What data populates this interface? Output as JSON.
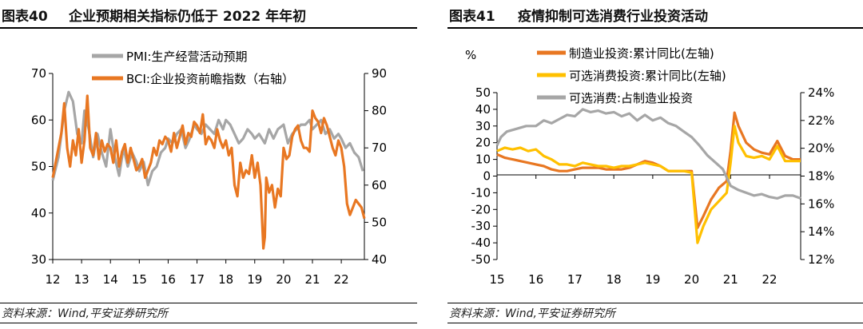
{
  "left": {
    "fig_no": "图表40",
    "title": "企业预期相关指标仍低于 2022 年年初",
    "source": "资料来源：Wind,平安证券研究所",
    "chart_data": {
      "type": "line",
      "y_left_ticks": [
        "70",
        "60",
        "50",
        "40",
        "30"
      ],
      "y_right_ticks": [
        "90",
        "80",
        "70",
        "60",
        "50",
        "40"
      ],
      "x_ticks": [
        "12",
        "13",
        "14",
        "15",
        "16",
        "17",
        "18",
        "19",
        "20",
        "21",
        "22"
      ],
      "ylim": [
        30,
        70
      ],
      "y2lim": [
        40,
        90
      ],
      "xlim": [
        2012.0,
        2022.8
      ],
      "series": [
        {
          "name": "PMI:生产经营活动预期",
          "axis": "left",
          "color": "#a6a6a6",
          "x": [
            2012.0,
            2012.2,
            2012.4,
            2012.55,
            2012.7,
            2012.85,
            2013.0,
            2013.1,
            2013.25,
            2013.4,
            2013.55,
            2013.7,
            2013.85,
            2014.0,
            2014.15,
            2014.3,
            2014.45,
            2014.6,
            2014.75,
            2014.9,
            2015.0,
            2015.15,
            2015.3,
            2015.45,
            2015.6,
            2015.75,
            2015.9,
            2016.0,
            2016.15,
            2016.3,
            2016.45,
            2016.6,
            2016.75,
            2016.9,
            2017.0,
            2017.15,
            2017.3,
            2017.45,
            2017.6,
            2017.75,
            2017.9,
            2018.0,
            2018.15,
            2018.3,
            2018.45,
            2018.6,
            2018.75,
            2018.9,
            2019.0,
            2019.15,
            2019.25,
            2019.35,
            2019.5,
            2019.65,
            2019.8,
            2020.0,
            2020.15,
            2020.3,
            2020.45,
            2020.6,
            2020.75,
            2020.9,
            2021.0,
            2021.15,
            2021.3,
            2021.45,
            2021.6,
            2021.75,
            2021.9,
            2022.0,
            2022.15,
            2022.3,
            2022.45,
            2022.6,
            2022.75
          ],
          "values": [
            47,
            52,
            62,
            66,
            64,
            57,
            55,
            62,
            58,
            52,
            57,
            53,
            50,
            58,
            52,
            48,
            54,
            50,
            53,
            51,
            49,
            51,
            46,
            49,
            50,
            53,
            54,
            56,
            55,
            57,
            58,
            54,
            56,
            59,
            58,
            57,
            59,
            58,
            57,
            60,
            58,
            60,
            59,
            57,
            55,
            56,
            58,
            57,
            56,
            57,
            56,
            55,
            58,
            56,
            58,
            59,
            55,
            57,
            58,
            59,
            59,
            60,
            58,
            59,
            60,
            57,
            58,
            56,
            57,
            56,
            54,
            55,
            53,
            52,
            49
          ]
        },
        {
          "name": "BCI:企业投资前瞻指数（右轴）",
          "axis": "right",
          "color": "#e87722",
          "x": [
            2012.0,
            2012.15,
            2012.3,
            2012.4,
            2012.5,
            2012.6,
            2012.7,
            2012.8,
            2012.9,
            2013.0,
            2013.1,
            2013.2,
            2013.3,
            2013.4,
            2013.5,
            2013.6,
            2013.7,
            2013.8,
            2013.9,
            2014.0,
            2014.1,
            2014.2,
            2014.3,
            2014.4,
            2014.5,
            2014.6,
            2014.7,
            2014.8,
            2014.9,
            2015.0,
            2015.1,
            2015.2,
            2015.3,
            2015.4,
            2015.5,
            2015.6,
            2015.7,
            2015.8,
            2015.9,
            2016.0,
            2016.1,
            2016.2,
            2016.3,
            2016.4,
            2016.5,
            2016.6,
            2016.7,
            2016.8,
            2016.9,
            2017.0,
            2017.1,
            2017.2,
            2017.3,
            2017.4,
            2017.5,
            2017.6,
            2017.7,
            2017.8,
            2017.9,
            2018.0,
            2018.1,
            2018.2,
            2018.3,
            2018.4,
            2018.5,
            2018.6,
            2018.7,
            2018.8,
            2018.9,
            2019.0,
            2019.1,
            2019.2,
            2019.3,
            2019.35,
            2019.4,
            2019.5,
            2019.6,
            2019.7,
            2019.8,
            2019.9,
            2020.0,
            2020.1,
            2020.2,
            2020.3,
            2020.4,
            2020.5,
            2020.6,
            2020.7,
            2020.8,
            2020.9,
            2021.0,
            2021.1,
            2021.2,
            2021.3,
            2021.4,
            2021.5,
            2021.6,
            2021.7,
            2021.8,
            2021.9,
            2022.0,
            2022.1,
            2022.2,
            2022.3,
            2022.4,
            2022.5,
            2022.6,
            2022.7,
            2022.8
          ],
          "values": [
            62,
            68,
            74,
            82,
            70,
            65,
            72,
            68,
            75,
            66,
            72,
            84,
            70,
            68,
            74,
            67,
            72,
            69,
            71,
            70,
            66,
            72,
            65,
            69,
            71,
            66,
            70,
            67,
            64,
            65,
            67,
            62,
            64,
            66,
            70,
            68,
            72,
            71,
            73,
            72,
            69,
            74,
            70,
            73,
            76,
            71,
            74,
            73,
            77,
            76,
            74,
            79,
            71,
            73,
            72,
            70,
            75,
            72,
            70,
            72,
            68,
            70,
            60,
            57,
            66,
            62,
            64,
            63,
            68,
            62,
            66,
            60,
            43,
            46,
            62,
            58,
            60,
            54,
            59,
            57,
            70,
            67,
            68,
            73,
            75,
            76,
            72,
            70,
            70,
            69,
            80,
            78,
            77,
            74,
            78,
            76,
            73,
            70,
            68,
            72,
            70,
            65,
            55,
            52,
            54,
            56,
            55,
            54,
            51
          ]
        }
      ]
    }
  },
  "right": {
    "fig_no": "图表41",
    "title": "疫情抑制可选消费行业投资活动",
    "source": "资料来源：Wind,平安证券研究所",
    "chart_data": {
      "type": "line",
      "y_unit": "%",
      "y_left_ticks": [
        "50",
        "40",
        "30",
        "20",
        "10",
        "0",
        "-10",
        "-20",
        "-30",
        "-40",
        "-50"
      ],
      "y_right_ticks": [
        "24%",
        "22%",
        "20%",
        "18%",
        "16%",
        "14%",
        "12%"
      ],
      "x_ticks": [
        "15",
        "16",
        "17",
        "18",
        "19",
        "20",
        "21",
        "22"
      ],
      "ylim": [
        -50,
        50
      ],
      "y2lim": [
        12,
        24
      ],
      "xlim": [
        2015.0,
        2022.8
      ],
      "series": [
        {
          "name": "制造业投资:累计同比(左轴)",
          "axis": "left",
          "color": "#e87722",
          "x": [
            2015.0,
            2015.2,
            2015.4,
            2015.6,
            2015.8,
            2016.0,
            2016.2,
            2016.4,
            2016.6,
            2016.8,
            2017.0,
            2017.2,
            2017.4,
            2017.6,
            2017.8,
            2018.0,
            2018.2,
            2018.4,
            2018.6,
            2018.8,
            2019.0,
            2019.2,
            2019.4,
            2019.6,
            2019.8,
            2020.0,
            2020.15,
            2020.3,
            2020.5,
            2020.7,
            2020.9,
            2021.0,
            2021.1,
            2021.2,
            2021.4,
            2021.6,
            2021.8,
            2022.0,
            2022.2,
            2022.4,
            2022.6,
            2022.8
          ],
          "values": [
            13,
            11,
            10,
            9,
            8,
            7,
            6,
            4,
            3,
            3,
            4,
            5,
            5,
            5,
            4,
            4,
            4,
            5,
            7,
            9,
            8,
            6,
            3,
            3,
            3,
            3,
            -31,
            -24,
            -14,
            -7,
            -3,
            15,
            38,
            30,
            20,
            16,
            14,
            13,
            21,
            12,
            10,
            10
          ]
        },
        {
          "name": "可选消费投资:累计同比(左轴)",
          "axis": "left",
          "color": "#ffc000",
          "x": [
            2015.0,
            2015.2,
            2015.4,
            2015.6,
            2015.8,
            2016.0,
            2016.2,
            2016.4,
            2016.6,
            2016.8,
            2017.0,
            2017.2,
            2017.4,
            2017.6,
            2017.8,
            2018.0,
            2018.2,
            2018.4,
            2018.6,
            2018.8,
            2019.0,
            2019.2,
            2019.4,
            2019.6,
            2019.8,
            2020.0,
            2020.15,
            2020.3,
            2020.5,
            2020.7,
            2020.9,
            2021.0,
            2021.1,
            2021.2,
            2021.4,
            2021.6,
            2021.8,
            2022.0,
            2022.2,
            2022.4,
            2022.6,
            2022.8
          ],
          "values": [
            15,
            17,
            16,
            17,
            15,
            16,
            12,
            10,
            7,
            7,
            6,
            8,
            7,
            6,
            6,
            5,
            6,
            6,
            7,
            8,
            7,
            6,
            3,
            3,
            3,
            2,
            -40,
            -30,
            -20,
            -15,
            -10,
            8,
            30,
            20,
            12,
            11,
            12,
            10,
            18,
            9,
            9,
            9
          ]
        },
        {
          "name": "可选消费:占制造业投资",
          "axis": "right",
          "color": "#a6a6a6",
          "x": [
            2015.0,
            2015.1,
            2015.25,
            2015.5,
            2015.75,
            2016.0,
            2016.2,
            2016.4,
            2016.6,
            2016.8,
            2017.0,
            2017.2,
            2017.4,
            2017.6,
            2017.8,
            2018.0,
            2018.2,
            2018.4,
            2018.6,
            2018.8,
            2019.0,
            2019.2,
            2019.4,
            2019.6,
            2019.8,
            2020.0,
            2020.2,
            2020.4,
            2020.6,
            2020.8,
            2021.0,
            2021.2,
            2021.4,
            2021.6,
            2021.8,
            2022.0,
            2022.2,
            2022.4,
            2022.6,
            2022.8
          ],
          "values": [
            20.2,
            20.8,
            21.2,
            21.4,
            21.6,
            21.6,
            22.0,
            21.8,
            22.1,
            22.4,
            22.3,
            22.8,
            22.6,
            22.7,
            22.5,
            22.6,
            22.3,
            22.5,
            22.0,
            22.4,
            22.0,
            22.2,
            21.8,
            21.6,
            21.2,
            20.8,
            20.2,
            19.5,
            19.0,
            18.5,
            17.3,
            17.0,
            16.8,
            16.6,
            16.7,
            16.5,
            16.4,
            16.6,
            16.6,
            16.4
          ]
        }
      ]
    }
  }
}
